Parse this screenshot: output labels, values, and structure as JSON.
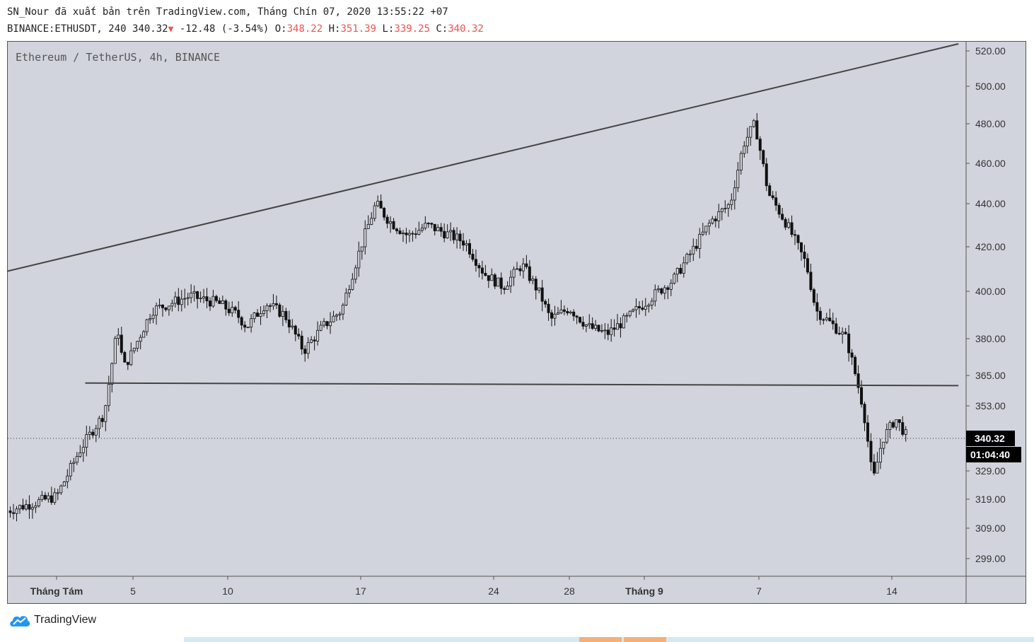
{
  "header": {
    "line1": "SN_Nour đã xuất bản trên TradingView.com, Tháng Chín 07, 2020 13:55:22 +07",
    "symbol_interval": "BINANCE:ETHUSDT, 240",
    "last": "340.32",
    "change_arrow": "▼",
    "change": "-12.48 (-3.54%)",
    "o_label": "O:",
    "o_value": "348.22",
    "h_label": "H:",
    "h_value": "351.39",
    "l_label": "L:",
    "l_value": "339.25",
    "c_label": "C:",
    "c_value": "340.32"
  },
  "chart_label": "Ethereum / TetherUS, 4h, BINANCE",
  "logo_text": "TradingView",
  "colors": {
    "plot_bg": "#d1d4dc",
    "candle": "#111111",
    "line": "#444444",
    "tag_bg": "#000000"
  },
  "chart_data": {
    "type": "candlestick",
    "symbol": "ETHUSDT",
    "exchange": "BINANCE",
    "interval": "4h",
    "price_ticks": [
      "520.00",
      "500.00",
      "480.00",
      "460.00",
      "440.00",
      "420.00",
      "400.00",
      "380.00",
      "365.00",
      "353.00",
      "340.32",
      "329.00",
      "319.00",
      "309.00",
      "299.00"
    ],
    "price_tick_values": [
      520,
      500,
      480,
      460,
      440,
      420,
      400,
      380,
      365,
      353,
      329,
      319,
      309,
      299
    ],
    "time_ticks": [
      {
        "label": "Tháng Tám",
        "bold": true,
        "day": 0
      },
      {
        "label": "5",
        "bold": false,
        "day": 4
      },
      {
        "label": "10",
        "bold": false,
        "day": 9
      },
      {
        "label": "17",
        "bold": false,
        "day": 16
      },
      {
        "label": "24",
        "bold": false,
        "day": 23
      },
      {
        "label": "28",
        "bold": false,
        "day": 27
      },
      {
        "label": "Tháng 9",
        "bold": true,
        "day": 31
      },
      {
        "label": "7",
        "bold": false,
        "day": 37
      },
      {
        "label": "14",
        "bold": false,
        "day": 44
      }
    ],
    "current_price": "340.32",
    "countdown": "01:04:40",
    "ylim": [
      290,
      525
    ],
    "trendlines": [
      {
        "name": "resistance",
        "from": {
          "day": -2.6,
          "price": 409
        },
        "to": {
          "day": 47.5,
          "price": 524
        }
      },
      {
        "name": "support",
        "from": {
          "day": 1.5,
          "price": 362
        },
        "to": {
          "day": 47.5,
          "price": 361
        }
      }
    ],
    "ohlc_keypoints": [
      [
        -2.6,
        315
      ],
      [
        0,
        320
      ],
      [
        1.2,
        336
      ],
      [
        2.5,
        350
      ],
      [
        3.2,
        385
      ],
      [
        3.5,
        368
      ],
      [
        4,
        375
      ],
      [
        5,
        392
      ],
      [
        6,
        395
      ],
      [
        7,
        398
      ],
      [
        8.5,
        395
      ],
      [
        9.5,
        390
      ],
      [
        10,
        385
      ],
      [
        11,
        395
      ],
      [
        12,
        390
      ],
      [
        13,
        375
      ],
      [
        14,
        385
      ],
      [
        15,
        392
      ],
      [
        16,
        420
      ],
      [
        16.8,
        440
      ],
      [
        17.5,
        432
      ],
      [
        18.5,
        425
      ],
      [
        19.5,
        430
      ],
      [
        20.8,
        425
      ],
      [
        21.5,
        422
      ],
      [
        22.5,
        408
      ],
      [
        23.5,
        402
      ],
      [
        24.5,
        412
      ],
      [
        25.5,
        398
      ],
      [
        26,
        388
      ],
      [
        27,
        393
      ],
      [
        28,
        385
      ],
      [
        29,
        382
      ],
      [
        30,
        388
      ],
      [
        31,
        395
      ],
      [
        32.5,
        405
      ],
      [
        33.5,
        418
      ],
      [
        34.5,
        432
      ],
      [
        35.5,
        440
      ],
      [
        36.2,
        470
      ],
      [
        36.8,
        480
      ],
      [
        37.5,
        445
      ],
      [
        38.5,
        430
      ],
      [
        39.5,
        412
      ],
      [
        40,
        392
      ],
      [
        41,
        385
      ],
      [
        41.6,
        380
      ],
      [
        42,
        368
      ],
      [
        42.5,
        352
      ],
      [
        43,
        325
      ],
      [
        43.5,
        340
      ],
      [
        44.2,
        348
      ],
      [
        44.8,
        341
      ]
    ]
  }
}
